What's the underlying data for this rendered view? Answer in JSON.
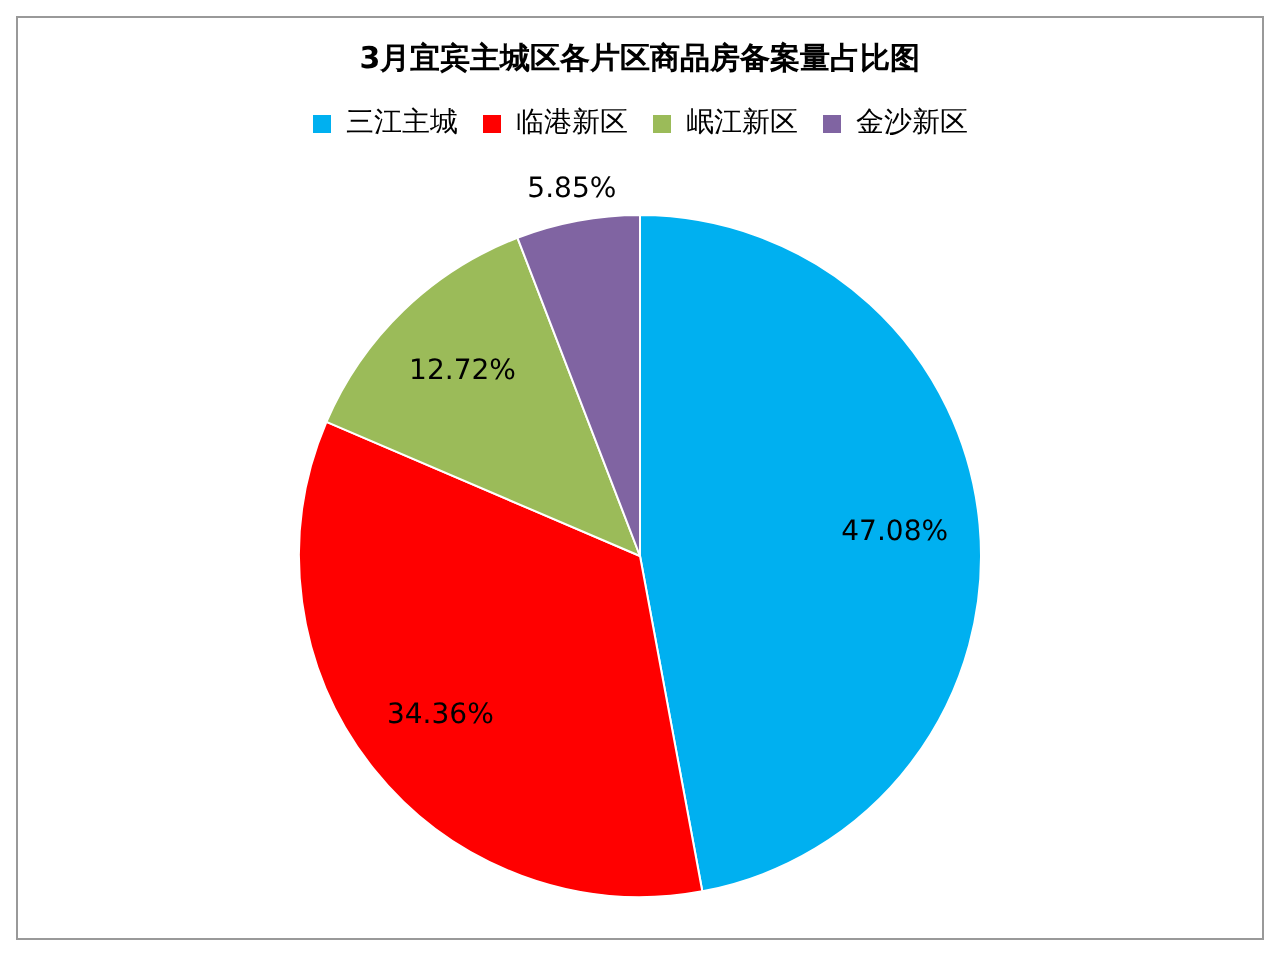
{
  "chart_data": {
    "type": "pie",
    "title": "3月宜宾主城区各片区商品房备案量占比图",
    "categories": [
      "三江主城",
      "临港新区",
      "岷江新区",
      "金沙新区"
    ],
    "values": [
      47.08,
      34.36,
      12.72,
      5.85
    ],
    "value_labels": [
      "47.08%",
      "34.36%",
      "12.72%",
      "5.85%"
    ],
    "colors": [
      "#00b0f0",
      "#ff0000",
      "#9bbb59",
      "#8064a2"
    ],
    "legend": "top"
  }
}
